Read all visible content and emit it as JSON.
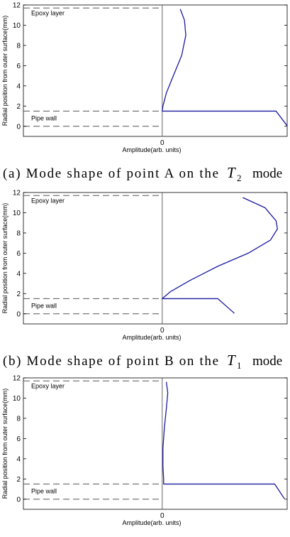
{
  "chart_data": [
    {
      "type": "line",
      "ylabel": "Radial position from outer surface(mm)",
      "xlabel": "Amplitude(arb. units)",
      "ylim": [
        -1,
        12
      ],
      "yticks": [
        0,
        2,
        4,
        6,
        8,
        10,
        12
      ],
      "xticks": [
        "0"
      ],
      "xlim": [
        -1,
        0.9
      ],
      "annotations": [
        {
          "text": "Epoxy layer",
          "y": 11.7
        },
        {
          "text": "Pipe wall",
          "y": 1.5
        }
      ],
      "reference_lines_y": [
        11.7,
        1.5,
        0
      ],
      "series": [
        {
          "color": "#1a1aa0",
          "points": [
            [
              0.13,
              11.6
            ],
            [
              0.16,
              10.5
            ],
            [
              0.17,
              9.0
            ],
            [
              0.14,
              7.0
            ],
            [
              0.08,
              5.0
            ],
            [
              0.03,
              3.3
            ],
            [
              0.005,
              2.0
            ],
            [
              0.0,
              1.5
            ],
            [
              0.82,
              1.5
            ],
            [
              0.9,
              0.05
            ]
          ]
        }
      ],
      "caption": {
        "label": "(a) Mode shape of point A on the",
        "symbol": "T",
        "subscript": "2",
        "suffix": "mode"
      }
    },
    {
      "type": "line",
      "ylabel": "Radial position from outer surface(mm)",
      "xlabel": "Amplitude(arb. units)",
      "ylim": [
        -1,
        12
      ],
      "yticks": [
        0,
        2,
        4,
        6,
        8,
        10,
        12
      ],
      "xticks": [
        "0"
      ],
      "xlim": [
        -1,
        0.9
      ],
      "annotations": [
        {
          "text": "Epoxy layer",
          "y": 11.7
        },
        {
          "text": "Pipe wall",
          "y": 1.5
        }
      ],
      "reference_lines_y": [
        11.7,
        1.5,
        0
      ],
      "series": [
        {
          "color": "#1a1aa0",
          "points": [
            [
              0.58,
              11.5
            ],
            [
              0.74,
              10.5
            ],
            [
              0.82,
              9.2
            ],
            [
              0.83,
              8.4
            ],
            [
              0.78,
              7.3
            ],
            [
              0.62,
              6.0
            ],
            [
              0.4,
              4.7
            ],
            [
              0.2,
              3.3
            ],
            [
              0.06,
              2.2
            ],
            [
              0.0,
              1.5
            ],
            [
              0.4,
              1.5
            ],
            [
              0.52,
              0.05
            ]
          ]
        }
      ],
      "caption": {
        "label": "(b) Mode shape of point B on the",
        "symbol": "T",
        "subscript": "1",
        "suffix": "mode"
      }
    },
    {
      "type": "line",
      "ylabel": "Radial position from outer surface(mm)",
      "xlabel": "Amplitude(arb. units)",
      "ylim": [
        -1,
        12
      ],
      "yticks": [
        0,
        2,
        4,
        6,
        8,
        10,
        12
      ],
      "xticks": [
        "0"
      ],
      "xlim": [
        -1,
        0.9
      ],
      "annotations": [
        {
          "text": "Epoxy layer",
          "y": 11.7
        },
        {
          "text": "Pipe wall",
          "y": 1.5
        }
      ],
      "reference_lines_y": [
        11.7,
        1.5,
        0
      ],
      "series": [
        {
          "color": "#1a1aa0",
          "points": [
            [
              0.03,
              11.6
            ],
            [
              0.04,
              10.5
            ],
            [
              0.03,
              9.0
            ],
            [
              0.015,
              7.0
            ],
            [
              0.005,
              5.0
            ],
            [
              0.005,
              3.3
            ],
            [
              0.01,
              2.0
            ],
            [
              0.01,
              1.5
            ],
            [
              0.81,
              1.5
            ],
            [
              0.88,
              0.05
            ]
          ]
        }
      ]
    }
  ]
}
